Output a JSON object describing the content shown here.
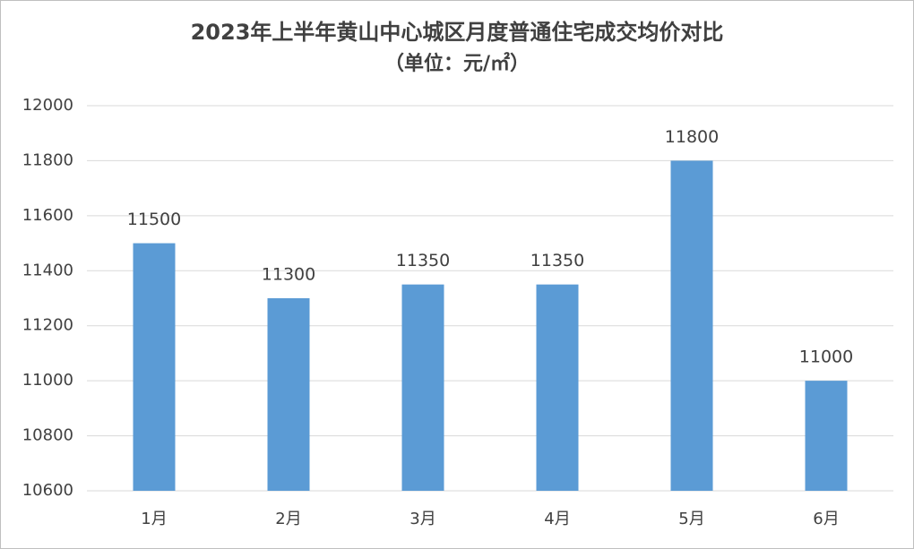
{
  "chart_data": {
    "type": "bar",
    "title": "2023年上半年黄山中心城区月度普通住宅成交均价对比",
    "subtitle": "（单位：元/㎡）",
    "categories": [
      "1月",
      "2月",
      "3月",
      "4月",
      "5月",
      "6月"
    ],
    "values": [
      11500,
      11300,
      11350,
      11350,
      11800,
      11000
    ],
    "color": "#5b9bd5",
    "ylim": [
      10600,
      12000
    ],
    "yticks": [
      10600,
      10800,
      11000,
      11200,
      11400,
      11600,
      11800,
      12000
    ],
    "grid": true
  }
}
